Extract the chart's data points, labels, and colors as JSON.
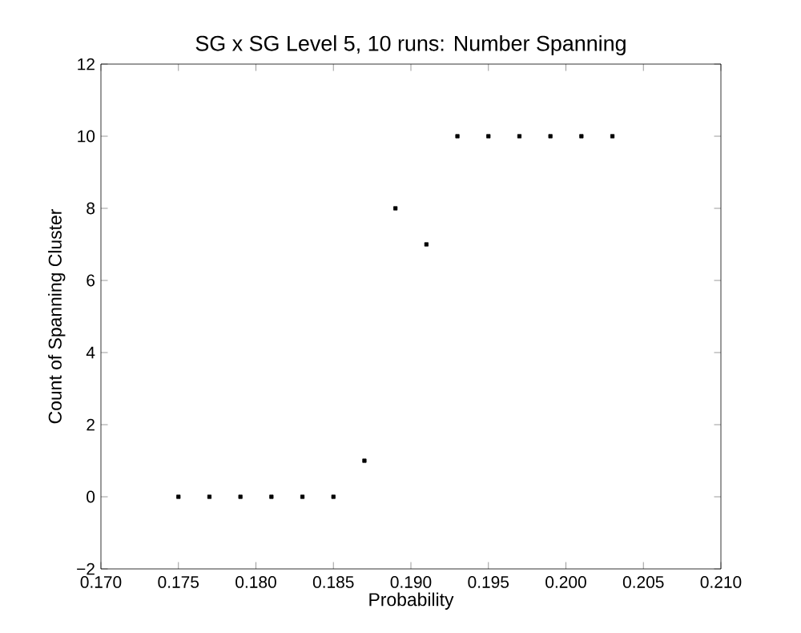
{
  "chart_data": {
    "type": "scatter",
    "title": "SG x SG Level 5, 10 runs: Number Spanning",
    "xlabel": "Probability",
    "ylabel": "Count of Spanning Cluster",
    "x": [
      0.175,
      0.177,
      0.179,
      0.181,
      0.183,
      0.185,
      0.187,
      0.189,
      0.191,
      0.193,
      0.195,
      0.197,
      0.199,
      0.201,
      0.203
    ],
    "series": [
      {
        "color": "#000000",
        "values": [
          0,
          0,
          0,
          0,
          0,
          0,
          1,
          8,
          7,
          10,
          10,
          10,
          10,
          10,
          10
        ]
      }
    ],
    "marker": "square",
    "grid": false,
    "xlim": [
      0.17,
      0.21
    ],
    "xticks": [
      {
        "value": 0.17,
        "label": "0.170"
      },
      {
        "value": 0.175,
        "label": "0.175"
      },
      {
        "value": 0.18,
        "label": "0.180"
      },
      {
        "value": 0.185,
        "label": "0.185"
      },
      {
        "value": 0.19,
        "label": "0.190"
      },
      {
        "value": 0.195,
        "label": "0.195"
      },
      {
        "value": 0.2,
        "label": "0.200"
      },
      {
        "value": 0.205,
        "label": "0.205"
      },
      {
        "value": 0.21,
        "label": "0.210"
      }
    ],
    "ylim": [
      -2,
      12
    ],
    "yticks": [
      {
        "value": -2,
        "label": "−2"
      },
      0,
      2,
      4,
      6,
      8,
      10,
      12
    ]
  }
}
